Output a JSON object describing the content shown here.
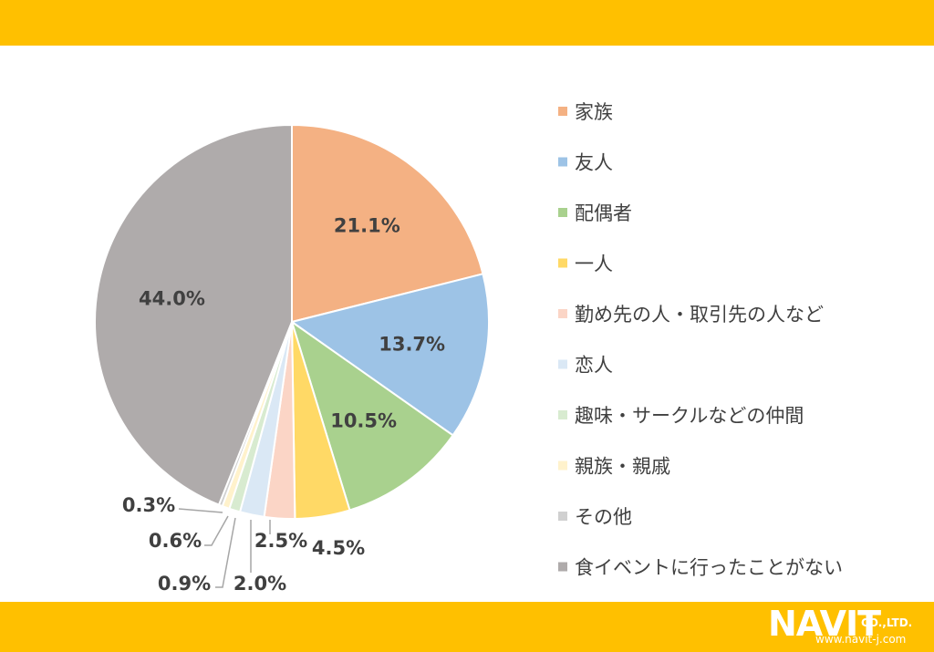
{
  "chart_data": {
    "type": "pie",
    "categories": [
      "家族",
      "友人",
      "配偶者",
      "一人",
      "勤め先の人・取引先の人など",
      "恋人",
      "趣味・サークルなどの仲間",
      "親族・親戚",
      "その他",
      "食イベントに行ったことがない"
    ],
    "values": [
      21.1,
      13.7,
      10.5,
      4.5,
      2.5,
      2.0,
      0.9,
      0.6,
      0.3,
      44.0
    ],
    "data_labels": [
      "21.1%",
      "13.7%",
      "10.5%",
      "4.5%",
      "2.5%",
      "2.0%",
      "0.9%",
      "0.6%",
      "0.3%",
      "44.0%"
    ],
    "colors": [
      "#f4b183",
      "#9dc3e6",
      "#a9d18e",
      "#ffd966",
      "#fbd5c6",
      "#dae8f5",
      "#d8ebd0",
      "#fff2cc",
      "#d0d0d0",
      "#afabab"
    ],
    "legend_position": "right"
  },
  "logo": {
    "main": "NAVIT",
    "company": "CO.,LTD.",
    "url": "www.navit-j.com"
  }
}
